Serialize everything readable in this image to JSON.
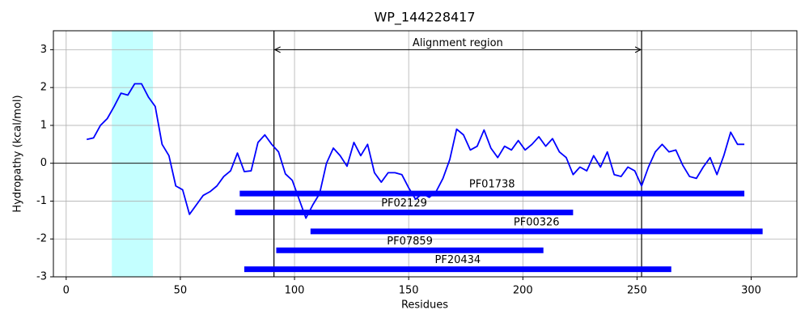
{
  "chart_data": {
    "type": "line",
    "title": "WP_144228417",
    "x_label": "Residues",
    "y_label": "Hydropathy (kcal/mol)",
    "xlim": [
      -5.6,
      320
    ],
    "ylim": [
      -3,
      3.5
    ],
    "xticks": [
      0,
      50,
      100,
      150,
      200,
      250,
      300
    ],
    "yticks": [
      -3,
      -2,
      -1,
      0,
      1,
      2,
      3
    ],
    "grid": true,
    "x": [
      9,
      12,
      15,
      18,
      21,
      24,
      27,
      30,
      33,
      36,
      39,
      42,
      45,
      48,
      51,
      54,
      57,
      60,
      63,
      66,
      69,
      72,
      75,
      78,
      81,
      84,
      87,
      90,
      93,
      96,
      99,
      102,
      105,
      108,
      111,
      114,
      117,
      120,
      123,
      126,
      129,
      132,
      135,
      138,
      141,
      144,
      147,
      150,
      153,
      156,
      159,
      162,
      165,
      168,
      171,
      174,
      177,
      180,
      183,
      186,
      189,
      192,
      195,
      198,
      201,
      204,
      207,
      210,
      213,
      216,
      219,
      222,
      225,
      228,
      231,
      234,
      237,
      240,
      243,
      246,
      249,
      252,
      255,
      258,
      261,
      264,
      267,
      270,
      273,
      276,
      279,
      282,
      285,
      288,
      291,
      294,
      297
    ],
    "series": [
      {
        "color": "#0000ff",
        "values": [
          0.63,
          0.67,
          1.0,
          1.18,
          1.5,
          1.85,
          1.8,
          2.1,
          2.1,
          1.75,
          1.5,
          0.5,
          0.2,
          -0.6,
          -0.7,
          -1.35,
          -1.1,
          -0.85,
          -0.75,
          -0.6,
          -0.35,
          -0.2,
          0.27,
          -0.22,
          -0.2,
          0.55,
          0.75,
          0.5,
          0.3,
          -0.28,
          -0.45,
          -0.95,
          -1.45,
          -1.1,
          -0.8,
          0.0,
          0.4,
          0.2,
          -0.08,
          0.55,
          0.2,
          0.5,
          -0.25,
          -0.5,
          -0.25,
          -0.25,
          -0.3,
          -0.65,
          -0.95,
          -0.8,
          -0.9,
          -0.75,
          -0.4,
          0.1,
          0.9,
          0.75,
          0.35,
          0.45,
          0.88,
          0.4,
          0.15,
          0.45,
          0.35,
          0.6,
          0.35,
          0.5,
          0.7,
          0.45,
          0.65,
          0.3,
          0.15,
          -0.3,
          -0.1,
          -0.2,
          0.2,
          -0.1,
          0.3,
          -0.3,
          -0.35,
          -0.1,
          -0.2,
          -0.6,
          -0.1,
          0.3,
          0.5,
          0.3,
          0.35,
          -0.05,
          -0.35,
          -0.4,
          -0.1,
          0.15,
          -0.3,
          0.2,
          0.82,
          0.5,
          0.5
        ]
      }
    ],
    "reference_line": 0,
    "highlight": {
      "start": 20,
      "end": 38,
      "color": "#c4ffff"
    },
    "alignment": {
      "label": "Alignment region",
      "start": 91,
      "end": 252,
      "y": 3
    },
    "domains": [
      {
        "name": "PF01738",
        "start": 76,
        "end": 297,
        "y": -0.8
      },
      {
        "name": "PF02129",
        "start": 74,
        "end": 222,
        "y": -1.3
      },
      {
        "name": "PF00326",
        "start": 107,
        "end": 305,
        "y": -1.8
      },
      {
        "name": "PF07859",
        "start": 92,
        "end": 209,
        "y": -2.3
      },
      {
        "name": "PF20434",
        "start": 78,
        "end": 265,
        "y": -2.8
      }
    ],
    "domain_color": "#0000ff"
  }
}
